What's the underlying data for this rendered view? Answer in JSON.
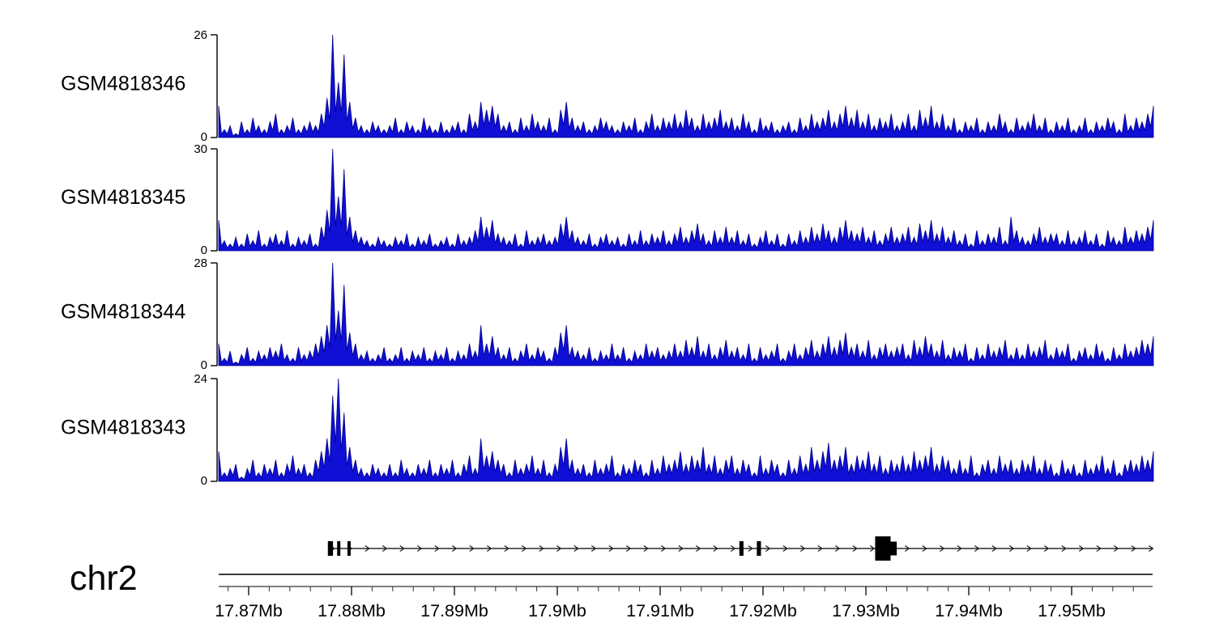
{
  "page": {
    "background": "#ffffff"
  },
  "chart_data": {
    "type": "area",
    "subtype": "genome-coverage-tracks",
    "title": "",
    "region": {
      "chromosome": "chr2",
      "start_mb": 17.867,
      "end_mb": 17.958,
      "unit": "Mb"
    },
    "signal_color": {
      "fill": "#0f0fd6",
      "stroke": "#020288"
    },
    "axis_color": "#000000",
    "tracks": [
      {
        "name": "GSM4818346",
        "ymin": 0,
        "ymax": 26,
        "profile": [
          8,
          2,
          3,
          1,
          4,
          2,
          5,
          3,
          2,
          4,
          6,
          2,
          3,
          5,
          2,
          3,
          4,
          3,
          6,
          10,
          26,
          14,
          21,
          9,
          5,
          3,
          2,
          4,
          3,
          2,
          3,
          5,
          2,
          4,
          3,
          2,
          5,
          3,
          2,
          4,
          2,
          3,
          4,
          2,
          6,
          4,
          9,
          7,
          8,
          6,
          3,
          4,
          2,
          5,
          3,
          6,
          4,
          3,
          5,
          2,
          7,
          9,
          5,
          3,
          4,
          2,
          3,
          5,
          4,
          3,
          2,
          4,
          3,
          5,
          2,
          4,
          6,
          3,
          5,
          4,
          6,
          4,
          7,
          5,
          3,
          6,
          4,
          5,
          7,
          4,
          5,
          3,
          6,
          4,
          2,
          5,
          3,
          4,
          2,
          3,
          4,
          2,
          5,
          3,
          6,
          4,
          5,
          7,
          4,
          6,
          8,
          5,
          7,
          4,
          6,
          3,
          5,
          4,
          6,
          3,
          4,
          6,
          3,
          7,
          5,
          8,
          4,
          6,
          3,
          5,
          2,
          4,
          3,
          5,
          2,
          4,
          3,
          6,
          4,
          2,
          5,
          3,
          4,
          6,
          3,
          5,
          2,
          4,
          3,
          5,
          2,
          3,
          5,
          2,
          4,
          3,
          5,
          4,
          2,
          6,
          3,
          5,
          4,
          6,
          8
        ]
      },
      {
        "name": "GSM4818345",
        "ymin": 0,
        "ymax": 30,
        "profile": [
          9,
          3,
          2,
          4,
          2,
          5,
          3,
          6,
          2,
          4,
          5,
          3,
          6,
          2,
          4,
          3,
          5,
          2,
          7,
          12,
          30,
          16,
          24,
          10,
          6,
          4,
          3,
          2,
          4,
          3,
          2,
          4,
          3,
          5,
          2,
          4,
          3,
          5,
          2,
          3,
          4,
          2,
          5,
          3,
          4,
          6,
          10,
          7,
          9,
          5,
          4,
          3,
          5,
          2,
          6,
          3,
          4,
          5,
          3,
          4,
          8,
          10,
          6,
          4,
          3,
          5,
          2,
          4,
          5,
          3,
          4,
          2,
          5,
          3,
          6,
          3,
          5,
          4,
          6,
          3,
          5,
          7,
          4,
          6,
          8,
          5,
          3,
          6,
          4,
          7,
          4,
          6,
          3,
          5,
          2,
          4,
          6,
          3,
          5,
          2,
          5,
          3,
          6,
          4,
          7,
          5,
          8,
          6,
          4,
          7,
          9,
          6,
          5,
          7,
          4,
          6,
          3,
          5,
          7,
          4,
          5,
          7,
          4,
          8,
          6,
          9,
          5,
          7,
          4,
          6,
          3,
          5,
          2,
          6,
          3,
          5,
          4,
          7,
          3,
          10,
          6,
          4,
          3,
          5,
          7,
          4,
          5,
          5,
          3,
          6,
          3,
          4,
          6,
          3,
          5,
          2,
          6,
          4,
          3,
          7,
          4,
          6,
          5,
          7,
          9
        ]
      },
      {
        "name": "GSM4818344",
        "ymin": 0,
        "ymax": 28,
        "profile": [
          6,
          2,
          4,
          1,
          3,
          5,
          2,
          4,
          3,
          5,
          4,
          6,
          3,
          2,
          5,
          3,
          4,
          6,
          8,
          11,
          28,
          15,
          22,
          9,
          6,
          3,
          4,
          2,
          3,
          5,
          2,
          3,
          5,
          2,
          4,
          3,
          5,
          2,
          4,
          3,
          5,
          2,
          4,
          3,
          6,
          4,
          11,
          6,
          8,
          5,
          3,
          5,
          2,
          4,
          6,
          3,
          5,
          4,
          2,
          5,
          9,
          11,
          5,
          4,
          3,
          5,
          2,
          4,
          3,
          6,
          3,
          5,
          2,
          4,
          3,
          6,
          4,
          5,
          3,
          4,
          6,
          4,
          7,
          5,
          8,
          4,
          6,
          3,
          5,
          7,
          4,
          5,
          3,
          6,
          2,
          5,
          3,
          4,
          6,
          2,
          4,
          6,
          3,
          5,
          7,
          4,
          6,
          8,
          5,
          7,
          9,
          5,
          6,
          4,
          7,
          3,
          5,
          6,
          4,
          5,
          6,
          3,
          7,
          5,
          8,
          6,
          4,
          7,
          3,
          5,
          4,
          6,
          2,
          5,
          3,
          6,
          4,
          5,
          7,
          3,
          5,
          3,
          6,
          4,
          5,
          7,
          3,
          5,
          4,
          6,
          2,
          4,
          5,
          3,
          6,
          4,
          2,
          5,
          3,
          6,
          4,
          5,
          7,
          6,
          8
        ]
      },
      {
        "name": "GSM4818343",
        "ymin": 0,
        "ymax": 24,
        "profile": [
          7,
          2,
          3,
          4,
          1,
          3,
          5,
          2,
          4,
          3,
          5,
          2,
          4,
          6,
          3,
          4,
          2,
          5,
          7,
          10,
          20,
          24,
          16,
          8,
          5,
          3,
          2,
          4,
          3,
          2,
          4,
          2,
          5,
          3,
          2,
          4,
          3,
          5,
          2,
          4,
          3,
          5,
          2,
          4,
          6,
          3,
          10,
          6,
          7,
          5,
          4,
          2,
          5,
          3,
          4,
          6,
          3,
          5,
          2,
          4,
          8,
          10,
          5,
          3,
          4,
          2,
          5,
          3,
          4,
          6,
          2,
          4,
          3,
          5,
          4,
          2,
          5,
          3,
          6,
          4,
          5,
          7,
          4,
          6,
          5,
          8,
          4,
          6,
          3,
          5,
          6,
          3,
          5,
          4,
          2,
          6,
          3,
          5,
          4,
          2,
          5,
          3,
          6,
          4,
          8,
          5,
          7,
          9,
          5,
          6,
          8,
          4,
          6,
          5,
          7,
          4,
          6,
          3,
          5,
          4,
          6,
          4,
          7,
          5,
          6,
          8,
          4,
          6,
          5,
          3,
          5,
          3,
          6,
          2,
          4,
          5,
          3,
          6,
          4,
          5,
          3,
          5,
          4,
          6,
          3,
          5,
          4,
          2,
          5,
          3,
          4,
          2,
          5,
          3,
          4,
          6,
          3,
          5,
          2,
          4,
          5,
          4,
          6,
          5,
          7
        ]
      }
    ],
    "x_axis": {
      "unit_suffix": "Mb",
      "ticks": [
        {
          "mb": 17.87,
          "label": "17.87Mb"
        },
        {
          "mb": 17.88,
          "label": "17.88Mb"
        },
        {
          "mb": 17.89,
          "label": "17.89Mb"
        },
        {
          "mb": 17.9,
          "label": "17.9Mb"
        },
        {
          "mb": 17.91,
          "label": "17.91Mb"
        },
        {
          "mb": 17.92,
          "label": "17.92Mb"
        },
        {
          "mb": 17.93,
          "label": "17.93Mb"
        },
        {
          "mb": 17.94,
          "label": "17.94Mb"
        },
        {
          "mb": 17.95,
          "label": "17.95Mb"
        }
      ],
      "minor_step_mb": 0.002,
      "minor_start_mb": 17.868,
      "minor_end_mb": 17.956
    },
    "gene_model": {
      "strand": "+",
      "start_mb": 17.8777,
      "end_mb": 17.9579,
      "color": "#000000",
      "arrow_color": "#222222",
      "exons": [
        {
          "start_mb": 17.8777,
          "end_mb": 17.8782,
          "type": "exon"
        },
        {
          "start_mb": 17.8786,
          "end_mb": 17.8789,
          "type": "exon"
        },
        {
          "start_mb": 17.8796,
          "end_mb": 17.8799,
          "type": "exon"
        },
        {
          "start_mb": 17.9177,
          "end_mb": 17.9181,
          "type": "exon"
        },
        {
          "start_mb": 17.9194,
          "end_mb": 17.9198,
          "type": "exon"
        },
        {
          "start_mb": 17.9309,
          "end_mb": 17.9324,
          "type": "cds"
        },
        {
          "start_mb": 17.9324,
          "end_mb": 17.933,
          "type": "utr"
        }
      ]
    }
  }
}
